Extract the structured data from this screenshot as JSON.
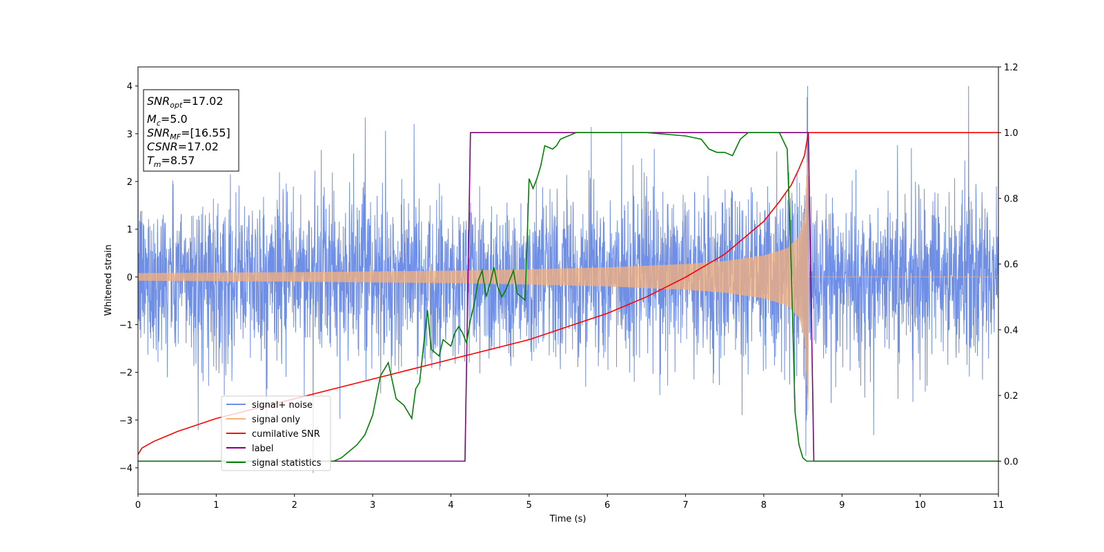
{
  "chart_data": {
    "type": "line",
    "xlabel": "Time (s)",
    "ylabel": "Whitened strain",
    "xlim": [
      0,
      11
    ],
    "ylim_left": [
      -4.55,
      4.4
    ],
    "ylim_right": [
      -0.1,
      1.2
    ],
    "x_ticks": [
      0,
      1,
      2,
      3,
      4,
      5,
      6,
      7,
      8,
      9,
      10,
      11
    ],
    "y_ticks_left": [
      -4,
      -3,
      -2,
      -1,
      0,
      1,
      2,
      3,
      4
    ],
    "y_ticks_right": [
      0.0,
      0.2,
      0.4,
      0.6,
      0.8,
      1.0,
      1.2
    ],
    "grid": false,
    "legend_position": "lower-left",
    "annotation": {
      "snr_opt_label": "SNR",
      "snr_opt_sub": "opt",
      "snr_opt_value": "=17.02",
      "mc_label": "M",
      "mc_sub": "c",
      "mc_value": "=5.0",
      "snr_mf_label": "SNR",
      "snr_mf_sub": "MF",
      "snr_mf_value": "=[16.55]",
      "csnr_label": "CSNR",
      "csnr_value": "=17.02",
      "tm_label": "T",
      "tm_sub": "m",
      "tm_value": "=8.57"
    },
    "series": [
      {
        "name": "signal+ noise",
        "axis": "left",
        "color": "#6f8ee6",
        "description_values": {
          "noise_std": 0.85,
          "range": [
            -4.2,
            4.0
          ]
        }
      },
      {
        "name": "signal only",
        "axis": "left",
        "color": "#f5b07a",
        "envelope": {
          "t": [
            0,
            2,
            4,
            5,
            6,
            7,
            7.5,
            8,
            8.3,
            8.45,
            8.52,
            8.57
          ],
          "amp": [
            0.08,
            0.1,
            0.13,
            0.16,
            0.2,
            0.27,
            0.33,
            0.45,
            0.6,
            0.85,
            1.3,
            2.9
          ]
        },
        "merger_time": 8.57
      },
      {
        "name": "cumilative SNR",
        "axis": "right",
        "color": "#ff0000",
        "x": [
          0,
          0.05,
          0.2,
          0.5,
          1,
          1.5,
          2,
          2.5,
          3,
          3.5,
          4,
          4.5,
          5,
          5.5,
          6,
          6.5,
          7,
          7.5,
          8,
          8.2,
          8.35,
          8.45,
          8.52,
          8.57,
          11
        ],
        "y": [
          0.02,
          0.04,
          0.06,
          0.09,
          0.13,
          0.16,
          0.19,
          0.22,
          0.25,
          0.28,
          0.31,
          0.34,
          0.37,
          0.41,
          0.45,
          0.5,
          0.56,
          0.63,
          0.73,
          0.79,
          0.84,
          0.89,
          0.93,
          1.0,
          1.0
        ]
      },
      {
        "name": "label",
        "axis": "right",
        "color": "#800080",
        "x": [
          0,
          4.18,
          4.25,
          8.57,
          8.64,
          11
        ],
        "y": [
          0,
          0,
          1,
          1,
          0,
          0
        ]
      },
      {
        "name": "signal statistics",
        "axis": "right",
        "color": "#008000",
        "x": [
          0,
          2.5,
          2.6,
          2.7,
          2.8,
          2.9,
          3.0,
          3.1,
          3.2,
          3.3,
          3.4,
          3.5,
          3.55,
          3.6,
          3.7,
          3.75,
          3.8,
          3.85,
          3.9,
          4.0,
          4.05,
          4.1,
          4.15,
          4.2,
          4.25,
          4.3,
          4.35,
          4.4,
          4.45,
          4.5,
          4.55,
          4.6,
          4.65,
          4.7,
          4.8,
          4.85,
          4.9,
          4.95,
          5.0,
          5.05,
          5.1,
          5.15,
          5.2,
          5.3,
          5.35,
          5.4,
          5.5,
          5.6,
          5.8,
          6.0,
          6.5,
          7.0,
          7.2,
          7.3,
          7.4,
          7.5,
          7.6,
          7.7,
          7.8,
          7.9,
          8.0,
          8.2,
          8.3,
          8.35,
          8.4,
          8.45,
          8.5,
          8.55,
          8.6,
          11
        ],
        "y": [
          0,
          0.0,
          0.01,
          0.03,
          0.05,
          0.08,
          0.14,
          0.26,
          0.3,
          0.19,
          0.17,
          0.13,
          0.22,
          0.24,
          0.46,
          0.34,
          0.33,
          0.32,
          0.37,
          0.35,
          0.39,
          0.41,
          0.39,
          0.36,
          0.43,
          0.48,
          0.55,
          0.58,
          0.5,
          0.54,
          0.59,
          0.53,
          0.5,
          0.52,
          0.58,
          0.51,
          0.5,
          0.49,
          0.86,
          0.83,
          0.86,
          0.9,
          0.96,
          0.95,
          0.96,
          0.98,
          0.99,
          1.0,
          1.0,
          1.0,
          1.0,
          0.99,
          0.98,
          0.95,
          0.94,
          0.94,
          0.93,
          0.98,
          1.0,
          1.0,
          1.0,
          1.0,
          0.95,
          0.6,
          0.15,
          0.05,
          0.01,
          0.0,
          0.0,
          0.0
        ]
      }
    ]
  }
}
